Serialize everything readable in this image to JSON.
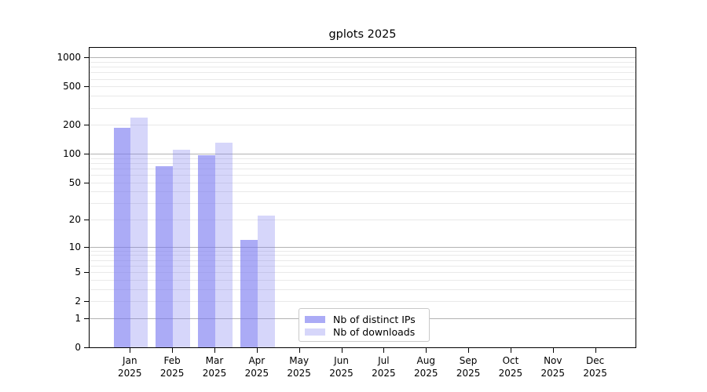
{
  "title": "gplots 2025",
  "legend": {
    "items": [
      {
        "label": "Nb of distinct IPs",
        "series": "distinct_ips"
      },
      {
        "label": "Nb of downloads",
        "series": "downloads"
      }
    ]
  },
  "colors": {
    "bar_distinct_ips": "rgba(120,120,240,0.62)",
    "bar_downloads": "rgba(120,120,240,0.30)",
    "grid_minor": "#e9e9e9",
    "grid_major": "#b3b3b3",
    "axis": "#000000",
    "legend_border": "#c9c9c9",
    "background": "#ffffff"
  },
  "chart_data": {
    "type": "bar",
    "title": "gplots 2025",
    "categories": [
      "Jan 2025",
      "Feb 2025",
      "Mar 2025",
      "Apr 2025",
      "May 2025",
      "Jun 2025",
      "Jul 2025",
      "Aug 2025",
      "Sep 2025",
      "Oct 2025",
      "Nov 2025",
      "Dec 2025"
    ],
    "series": [
      {
        "name": "Nb of distinct IPs",
        "key": "distinct_ips",
        "values": [
          185,
          74,
          97,
          12,
          null,
          null,
          null,
          null,
          null,
          null,
          null,
          null
        ]
      },
      {
        "name": "Nb of downloads",
        "key": "downloads",
        "values": [
          240,
          110,
          131,
          22,
          null,
          null,
          null,
          null,
          null,
          null,
          null,
          null
        ]
      }
    ],
    "xlabel": "",
    "ylabel": "",
    "y_scale": "log10(1+x)",
    "y_ticks": [
      0,
      1,
      2,
      5,
      10,
      20,
      50,
      100,
      200,
      500,
      1000
    ],
    "ylim": [
      0,
      1250
    ],
    "grid": "horizontal",
    "gridlines_minor": [
      2,
      3,
      4,
      5,
      6,
      7,
      8,
      9,
      20,
      30,
      40,
      50,
      60,
      70,
      80,
      90,
      200,
      300,
      400,
      500,
      600,
      700,
      800,
      900
    ],
    "gridlines_major": [
      1,
      10,
      100,
      1000
    ],
    "legend_position": "inside lower-center"
  }
}
